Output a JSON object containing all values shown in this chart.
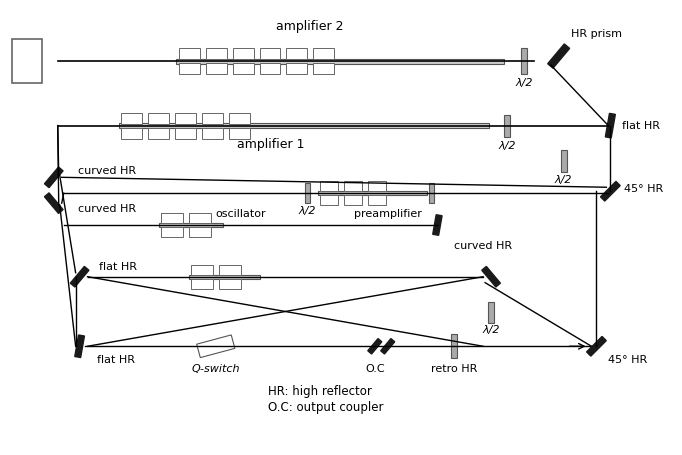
{
  "bg_color": "#ffffff",
  "line_color": "#000000",
  "mirror_color": "#1a1a1a",
  "text_color": "#000000",
  "fig_width": 6.82,
  "fig_height": 4.55,
  "labels": {
    "amplifier2": "amplifier 2",
    "amplifier1": "amplifier 1",
    "hr_prism": "HR prism",
    "flat_hr_top": "flat HR",
    "curved_hr1": "curved HR",
    "curved_hr2": "curved HR",
    "deg45_hr_top": "45° HR",
    "oscillator": "oscillator",
    "preamplifier": "preamplifier",
    "flat_hr_mid": "flat HR",
    "curved_hr_mid": "curved HR",
    "flat_hr_bot": "flat HR",
    "qswitch": "Q-switch",
    "oc": "O.C",
    "retro_hr": "retro HR",
    "deg45_hr_bot": "45° HR",
    "legend1": "HR: high reflector",
    "legend2": "O.C: output coupler",
    "lambda_half": "λ/2"
  }
}
